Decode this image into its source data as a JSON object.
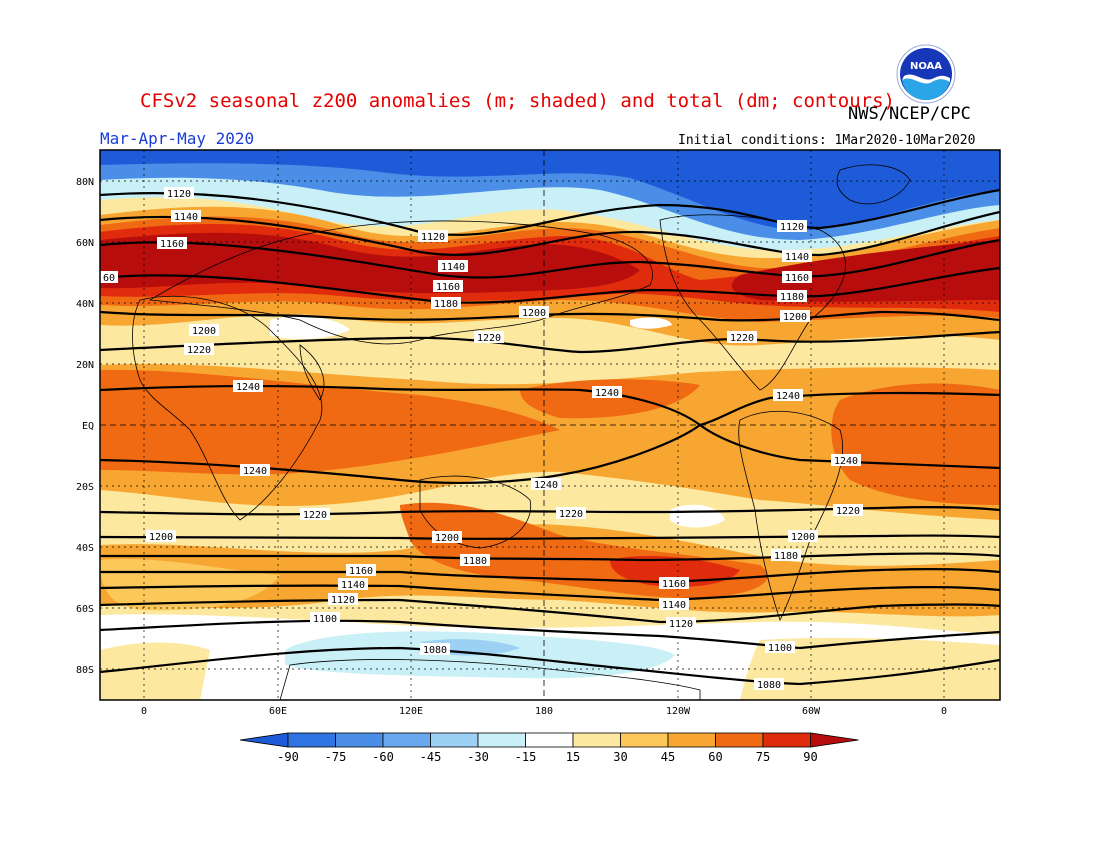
{
  "figure": {
    "title": "CFSv2 seasonal z200 anomalies (m; shaded) and total (dm; contours)",
    "agency": "NWS/NCEP/CPC",
    "season": "Mar-Apr-May 2020",
    "initial_conditions_label": "Initial conditions:",
    "initial_conditions_value": "1Mar2020-10Mar2020",
    "logo_text": "NOAA"
  },
  "axes": {
    "lat_ticks": [
      "80N",
      "60N",
      "40N",
      "20N",
      "EQ",
      "20S",
      "40S",
      "60S",
      "80S"
    ],
    "lon_ticks": [
      "0",
      "60E",
      "120E",
      "180",
      "120W",
      "60W",
      "0"
    ]
  },
  "colorbar": {
    "ticks": [
      "-90",
      "-75",
      "-60",
      "-45",
      "-30",
      "-15",
      "15",
      "30",
      "45",
      "60",
      "75",
      "90"
    ],
    "colors": [
      "#1e5bd8",
      "#2f74e0",
      "#4a8ee8",
      "#6aa8ee",
      "#9cd0f4",
      "#c8f0f6",
      "#ffffff",
      "#fde8a0",
      "#fcc85a",
      "#f8a632",
      "#f06a14",
      "#e02c0c",
      "#b80d0d"
    ]
  },
  "contour_labels": {
    "c1080": "1080",
    "c1100": "1100",
    "c1120": "1120",
    "c1140": "1140",
    "c1160": "1160",
    "c1180": "1180",
    "c1200": "1200",
    "c1220": "1220",
    "c1240": "1240",
    "c60": "60"
  },
  "chart_data": {
    "type": "heatmap",
    "title": "CFSv2 seasonal z200 anomalies (m; shaded) and total (dm; contours)",
    "xlabel": "",
    "ylabel": "",
    "xlim": [
      -20,
      360
    ],
    "ylim": [
      -90,
      90
    ],
    "anomaly_levels_m": [
      -90,
      -75,
      -60,
      -45,
      -30,
      -15,
      15,
      30,
      45,
      60,
      75,
      90
    ],
    "contour_levels_dm": [
      1080,
      1100,
      1120,
      1140,
      1160,
      1180,
      1200,
      1220,
      1240
    ]
  }
}
